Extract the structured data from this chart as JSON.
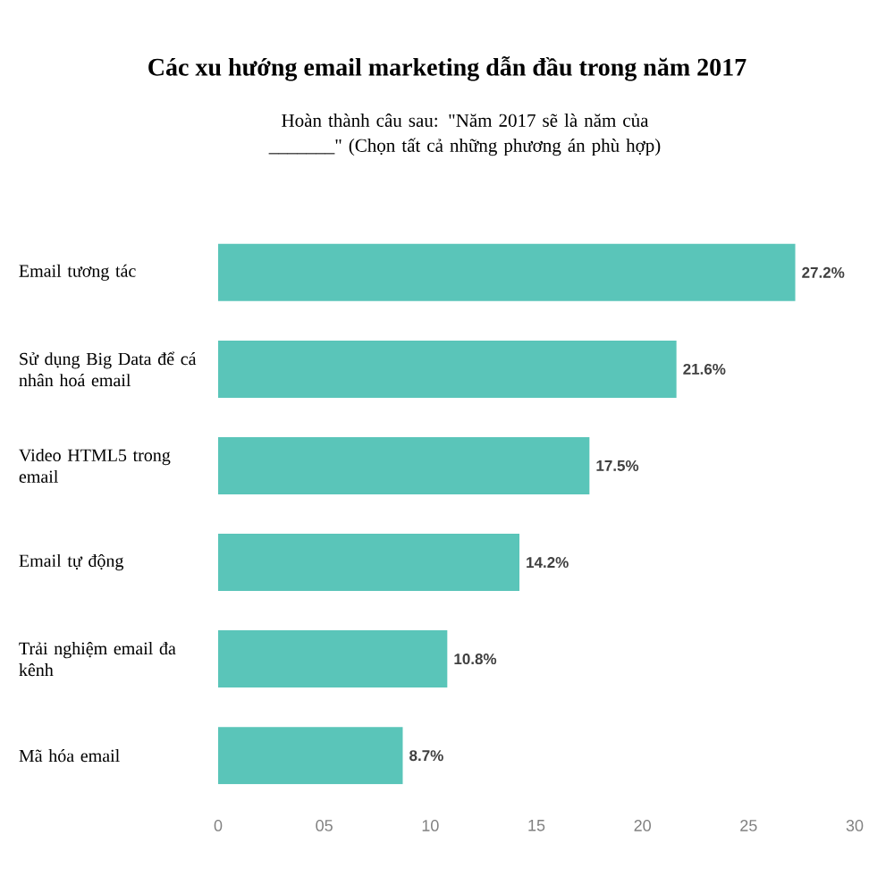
{
  "chart_data": {
    "type": "bar",
    "orientation": "horizontal",
    "title": "Các xu hướng email marketing dẫn đầu trong năm 2017",
    "subtitle": "Hoàn thành câu sau: \"Năm 2017 sẽ là năm của _______\" (Chọn tất cả những phương án phù hợp)",
    "categories": [
      "Email tương tác",
      "Sử dụng Big Data để cá nhân hoá email",
      "Video HTML5 trong email",
      "Email tự động",
      "Trải nghiệm email đa kênh",
      "Mã hóa email"
    ],
    "values": [
      27.2,
      21.6,
      17.5,
      14.2,
      10.8,
      8.7
    ],
    "value_labels": [
      "27.2%",
      "21.6%",
      "17.5%",
      "14.2%",
      "10.8%",
      "8.7%"
    ],
    "color": "#5ac5b9",
    "xlim": [
      0,
      30
    ],
    "xticks": [
      0,
      {
        "value": 5,
        "label": "05"
      },
      10,
      15,
      20,
      25,
      30
    ],
    "grid": false
  }
}
